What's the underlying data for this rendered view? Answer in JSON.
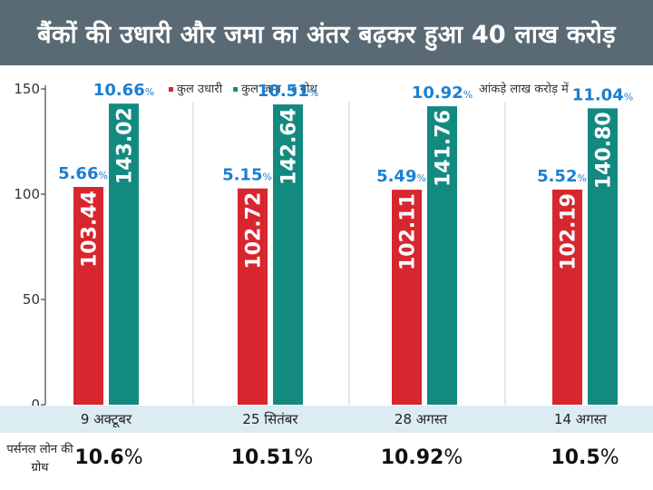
{
  "title": "बैंकों की उधारी और जमा का अंतर बढ़कर हुआ 40 लाख करोड़",
  "note": "आंकड़े लाख करोड़ में",
  "colors": {
    "loan": "#d7262e",
    "deposit": "#138a80",
    "growth": "#1c7fd0",
    "title_bg": "#5a6a74",
    "band": "#dcecf3"
  },
  "footer": {
    "label": "पर्सनल लोन की ग्रोथ",
    "values": [
      {
        "num": "10.6",
        "pct": "%"
      },
      {
        "num": "10.51",
        "pct": "%"
      },
      {
        "num": "10.92",
        "pct": "%"
      },
      {
        "num": "10.5",
        "pct": "%"
      }
    ]
  },
  "chart_data": {
    "type": "bar",
    "categories": [
      "9 अक्टूबर",
      "25 सितंबर",
      "28 अगस्त",
      "14 अगस्त"
    ],
    "series": [
      {
        "name": "कुल उधारी",
        "values": [
          103.44,
          102.72,
          102.11,
          102.19
        ],
        "growth": [
          "5.66",
          "5.15",
          "5.49",
          "5.52"
        ],
        "value_labels": [
          "103.44",
          "102.72",
          "102.11",
          "102.19"
        ]
      },
      {
        "name": "कुल जमा",
        "values": [
          143.02,
          142.64,
          141.76,
          140.8
        ],
        "growth": [
          "10.66",
          "10.51",
          "10.92",
          "11.04"
        ],
        "value_labels": [
          "143.02",
          "142.64",
          "141.76",
          "140.80"
        ]
      }
    ],
    "legend": [
      {
        "name": "कुल उधारी",
        "color": "#d7262e"
      },
      {
        "name": "कुल जमा",
        "color": "#138a80"
      },
      {
        "name": "ग्रोथ",
        "color": "#1c7fd0"
      }
    ],
    "growth_suffix": "%",
    "yticks": [
      "0",
      "50",
      "100",
      "150"
    ],
    "ylim": [
      0,
      150
    ],
    "grid": false,
    "legend_position": "top-center"
  }
}
